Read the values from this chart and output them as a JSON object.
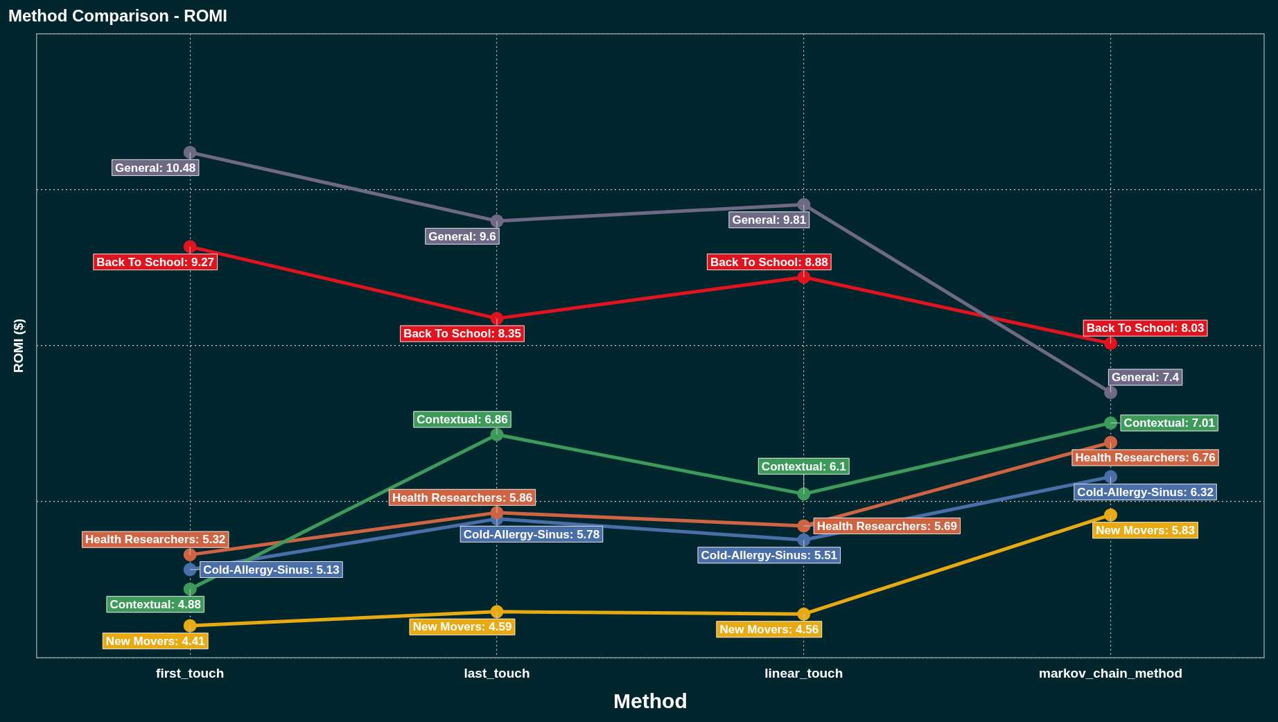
{
  "chart_data": {
    "type": "line",
    "title": "Method Comparison - ROMI",
    "xlabel": "Method",
    "ylabel": "ROMI ($)",
    "categories": [
      "first_touch",
      "last_touch",
      "linear_touch",
      "markov_chain_method"
    ],
    "tick_labels": "x",
    "grid": true,
    "legend": false,
    "marker": "circle",
    "line_style": "solid",
    "series": [
      {
        "color": "#6e6a86",
        "values": [
          10.48,
          9.6,
          9.81,
          7.4
        ],
        "value_labels": [
          "General: 10.48",
          "General: 9.6",
          "General: 9.81",
          "General: 7.4"
        ]
      },
      {
        "color": "#e0141e",
        "values": [
          9.27,
          8.35,
          8.88,
          8.03
        ],
        "value_labels": [
          "Back To School: 9.27",
          "Back To School: 8.35",
          "Back To School: 8.88",
          "Back To School: 8.03"
        ]
      },
      {
        "color": "#3d9a5a",
        "values": [
          4.88,
          6.86,
          6.1,
          7.01
        ],
        "value_labels": [
          "Contextual: 4.88",
          "Contextual: 6.86",
          "Contextual: 6.1",
          "Contextual: 7.01"
        ]
      },
      {
        "color": "#cf6443",
        "values": [
          5.32,
          5.86,
          5.69,
          6.76
        ],
        "value_labels": [
          "Health Researchers: 5.32",
          "Health Researchers: 5.86",
          "Health Researchers: 5.69",
          "Health Researchers: 6.76"
        ]
      },
      {
        "color": "#4a6fa8",
        "values": [
          5.13,
          5.78,
          5.51,
          6.32
        ],
        "value_labels": [
          "Cold-Allergy-Sinus: 5.13",
          "Cold-Allergy-Sinus: 5.78",
          "Cold-Allergy-Sinus: 5.51",
          "Cold-Allergy-Sinus: 6.32"
        ]
      },
      {
        "color": "#e8aa12",
        "values": [
          4.41,
          4.59,
          4.56,
          5.83
        ],
        "value_labels": [
          "New Movers: 4.41",
          "New Movers: 4.59",
          "New Movers: 4.56",
          "New Movers: 5.83"
        ]
      }
    ]
  }
}
